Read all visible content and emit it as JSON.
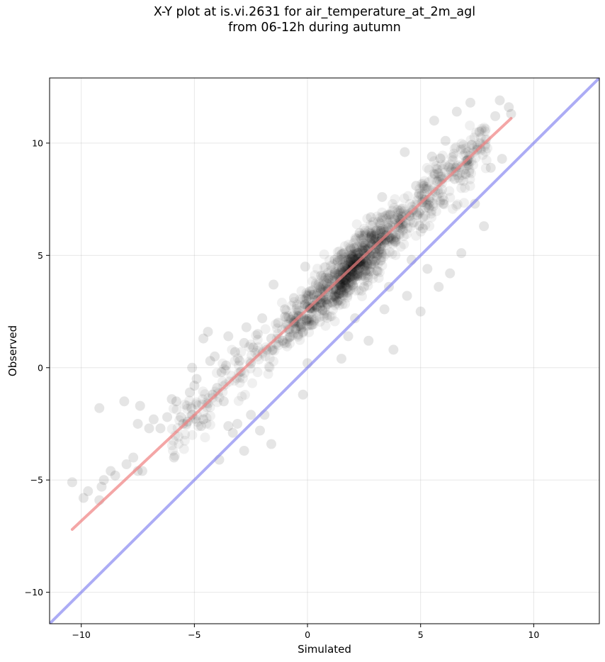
{
  "title_line1": "X-Y plot at is.vi.2631 for air_temperature_at_2m_agl",
  "title_line2": "from 06-12h during autumn",
  "chart_data": {
    "type": "scatter",
    "title": "X-Y plot at is.vi.2631 for air_temperature_at_2m_agl\nfrom 06-12h during autumn",
    "xlabel": "Simulated",
    "ylabel": "Observed",
    "xlim": [
      -11.4,
      12.9
    ],
    "ylim": [
      -11.4,
      12.9
    ],
    "xticks": [
      -10,
      -5,
      0,
      5,
      10
    ],
    "yticks": [
      -10,
      -5,
      0,
      5,
      10
    ],
    "xtick_labels": [
      "−10",
      "−5",
      "0",
      "5",
      "10"
    ],
    "ytick_labels": [
      "−10",
      "−5",
      "0",
      "5",
      "10"
    ],
    "grid": true,
    "point_color": "#000000",
    "point_alpha": 0.1,
    "regression_line": {
      "color": "#f08080",
      "x": [
        -10.4,
        9.0
      ],
      "y": [
        -7.2,
        11.1
      ]
    },
    "identity_line": {
      "color": "#8080f0",
      "x": [
        -11.4,
        12.9
      ],
      "y": [
        -11.4,
        12.9
      ]
    },
    "points": {
      "description_values": [
        [
          -10.4,
          -5.1
        ],
        [
          -9.9,
          -5.8
        ],
        [
          -9.7,
          -5.5
        ],
        [
          -9.2,
          -5.9
        ],
        [
          -9.1,
          -5.3
        ],
        [
          -9.0,
          -5.0
        ],
        [
          -9.2,
          -1.8
        ],
        [
          -8.7,
          -4.6
        ],
        [
          -8.5,
          -4.8
        ],
        [
          -8.1,
          -1.5
        ],
        [
          -8.0,
          -4.3
        ],
        [
          -7.7,
          -4.0
        ],
        [
          -7.5,
          -4.6
        ],
        [
          -7.3,
          -4.6
        ],
        [
          -7.5,
          -2.5
        ],
        [
          -7.4,
          -1.7
        ],
        [
          -7.0,
          -2.7
        ],
        [
          -6.8,
          -2.3
        ],
        [
          -6.5,
          -2.7
        ],
        [
          -6.2,
          -2.2
        ],
        [
          -6.0,
          -1.4
        ],
        [
          -5.8,
          -1.5
        ],
        [
          -5.9,
          -4.0
        ],
        [
          -5.6,
          -2.2
        ],
        [
          -5.5,
          -2.5
        ],
        [
          -5.3,
          -2.4
        ],
        [
          -5.1,
          -2.1
        ],
        [
          -5.2,
          -1.1
        ],
        [
          -5.0,
          -0.8
        ],
        [
          -4.9,
          -0.5
        ],
        [
          -5.1,
          0.0
        ],
        [
          -4.7,
          -2.6
        ],
        [
          -4.6,
          -2.3
        ],
        [
          -4.4,
          -1.6
        ],
        [
          -4.2,
          -1.2
        ],
        [
          -4.0,
          -0.9
        ],
        [
          -3.9,
          -4.1
        ],
        [
          -3.7,
          -1.5
        ],
        [
          -3.5,
          -2.6
        ],
        [
          -3.3,
          -2.9
        ],
        [
          -3.1,
          -2.5
        ],
        [
          -2.8,
          -3.7
        ],
        [
          -2.5,
          -2.1
        ],
        [
          -2.1,
          -2.8
        ],
        [
          -1.9,
          -2.1
        ],
        [
          -1.6,
          -3.4
        ],
        [
          -4.6,
          1.3
        ],
        [
          -4.4,
          1.6
        ],
        [
          -4.3,
          0.3
        ],
        [
          -4.1,
          0.5
        ],
        [
          -3.8,
          -0.2
        ],
        [
          -3.6,
          0.1
        ],
        [
          -3.5,
          1.4
        ],
        [
          -3.2,
          0.7
        ],
        [
          -3.0,
          0.3
        ],
        [
          -2.8,
          1.1
        ],
        [
          -2.7,
          1.8
        ],
        [
          -2.4,
          0.9
        ],
        [
          -2.2,
          1.5
        ],
        [
          -2.0,
          2.2
        ],
        [
          -1.8,
          0.8
        ],
        [
          -1.6,
          1.3
        ],
        [
          -1.5,
          3.7
        ],
        [
          -1.3,
          2.0
        ],
        [
          -1.1,
          1.2
        ],
        [
          -1.0,
          2.6
        ],
        [
          -0.8,
          1.7
        ],
        [
          -0.6,
          3.1
        ],
        [
          -0.4,
          2.3
        ],
        [
          -0.2,
          1.6
        ],
        [
          -0.1,
          4.5
        ],
        [
          0.0,
          0.2
        ],
        [
          -0.2,
          -1.2
        ],
        [
          0.1,
          3.4
        ],
        [
          0.2,
          1.9
        ],
        [
          0.4,
          2.7
        ],
        [
          0.6,
          4.1
        ],
        [
          0.9,
          3.5
        ],
        [
          1.1,
          2.9
        ],
        [
          1.2,
          4.8
        ],
        [
          1.4,
          3.3
        ],
        [
          1.5,
          0.4
        ],
        [
          1.6,
          5.1
        ],
        [
          1.8,
          1.4
        ],
        [
          2.0,
          4.3
        ],
        [
          2.1,
          2.2
        ],
        [
          2.3,
          6.0
        ],
        [
          2.5,
          3.6
        ],
        [
          2.7,
          1.2
        ],
        [
          2.8,
          6.7
        ],
        [
          3.0,
          5.1
        ],
        [
          3.1,
          4.3
        ],
        [
          3.3,
          7.6
        ],
        [
          3.4,
          2.6
        ],
        [
          3.6,
          3.6
        ],
        [
          3.8,
          0.8
        ],
        [
          3.9,
          5.8
        ],
        [
          4.1,
          6.6
        ],
        [
          4.3,
          9.6
        ],
        [
          4.4,
          3.2
        ],
        [
          4.6,
          4.8
        ],
        [
          4.8,
          8.1
        ],
        [
          5.0,
          2.5
        ],
        [
          5.1,
          6.2
        ],
        [
          5.3,
          4.4
        ],
        [
          5.5,
          9.4
        ],
        [
          5.6,
          11.0
        ],
        [
          5.8,
          3.6
        ],
        [
          6.0,
          7.3
        ],
        [
          6.1,
          10.1
        ],
        [
          6.3,
          4.2
        ],
        [
          6.5,
          8.4
        ],
        [
          6.6,
          11.4
        ],
        [
          6.8,
          5.1
        ],
        [
          7.0,
          9.2
        ],
        [
          7.2,
          11.8
        ],
        [
          7.4,
          7.3
        ],
        [
          7.6,
          10.5
        ],
        [
          7.8,
          6.3
        ],
        [
          8.1,
          8.9
        ],
        [
          8.3,
          11.2
        ],
        [
          8.5,
          11.9
        ],
        [
          8.6,
          9.3
        ],
        [
          8.9,
          11.6
        ],
        [
          9.0,
          11.3
        ]
      ]
    }
  }
}
